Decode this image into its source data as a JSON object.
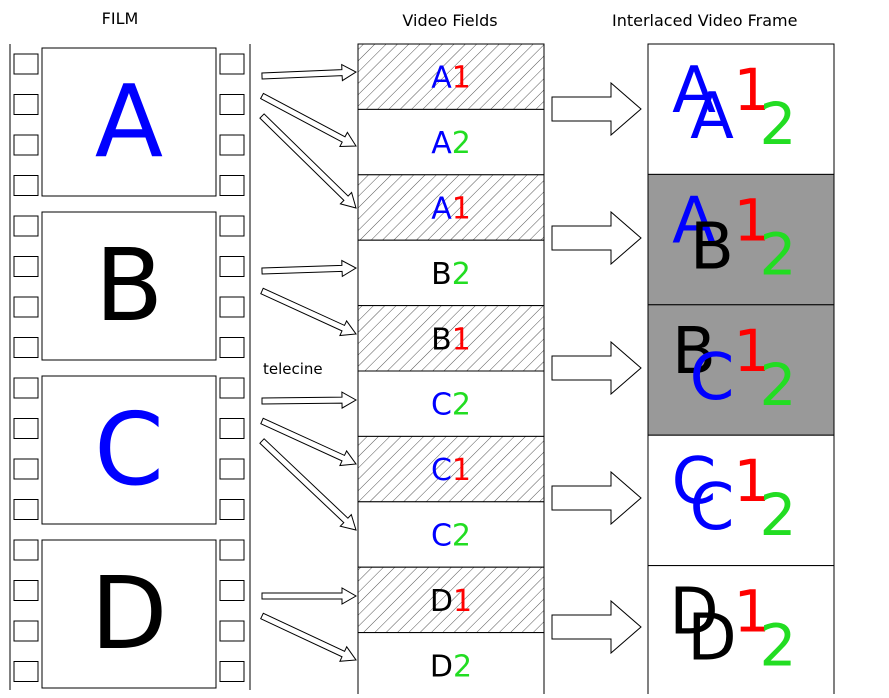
{
  "headers": {
    "film": "FILM",
    "fields": "Video Fields",
    "frames": "Interlaced Video Frame"
  },
  "telecine_label": "telecine",
  "colors": {
    "blue": "#0000ff",
    "red": "#ff0000",
    "green": "#22dd22",
    "black": "#000000",
    "gray": "#999999"
  },
  "film_frames": [
    {
      "letter": "A",
      "color": "#0000ff"
    },
    {
      "letter": "B",
      "color": "#000000"
    },
    {
      "letter": "C",
      "color": "#0000ff"
    },
    {
      "letter": "D",
      "color": "#000000"
    }
  ],
  "fields": [
    {
      "letter": "A",
      "number": "1",
      "letter_color": "#0000ff",
      "number_color": "#ff0000",
      "hatched": true
    },
    {
      "letter": "A",
      "number": "2",
      "letter_color": "#0000ff",
      "number_color": "#22dd22",
      "hatched": false
    },
    {
      "letter": "A",
      "number": "1",
      "letter_color": "#0000ff",
      "number_color": "#ff0000",
      "hatched": true
    },
    {
      "letter": "B",
      "number": "2",
      "letter_color": "#000000",
      "number_color": "#22dd22",
      "hatched": false
    },
    {
      "letter": "B",
      "number": "1",
      "letter_color": "#000000",
      "number_color": "#ff0000",
      "hatched": true
    },
    {
      "letter": "C",
      "number": "2",
      "letter_color": "#0000ff",
      "number_color": "#22dd22",
      "hatched": false
    },
    {
      "letter": "C",
      "number": "1",
      "letter_color": "#0000ff",
      "number_color": "#ff0000",
      "hatched": true
    },
    {
      "letter": "C",
      "number": "2",
      "letter_color": "#0000ff",
      "number_color": "#22dd22",
      "hatched": false
    },
    {
      "letter": "D",
      "number": "1",
      "letter_color": "#000000",
      "number_color": "#ff0000",
      "hatched": true
    },
    {
      "letter": "D",
      "number": "2",
      "letter_color": "#000000",
      "number_color": "#22dd22",
      "hatched": false
    }
  ],
  "frames": [
    {
      "top_letter": "A",
      "top_color": "#0000ff",
      "bottom_letter": "A",
      "bottom_color": "#0000ff",
      "gray": false
    },
    {
      "top_letter": "A",
      "top_color": "#0000ff",
      "bottom_letter": "B",
      "bottom_color": "#000000",
      "gray": true
    },
    {
      "top_letter": "B",
      "top_color": "#000000",
      "bottom_letter": "C",
      "bottom_color": "#0000ff",
      "gray": true
    },
    {
      "top_letter": "C",
      "top_color": "#0000ff",
      "bottom_letter": "C",
      "bottom_color": "#0000ff",
      "gray": false
    },
    {
      "top_letter": "D",
      "top_color": "#000000",
      "bottom_letter": "D",
      "bottom_color": "#000000",
      "gray": false
    }
  ]
}
